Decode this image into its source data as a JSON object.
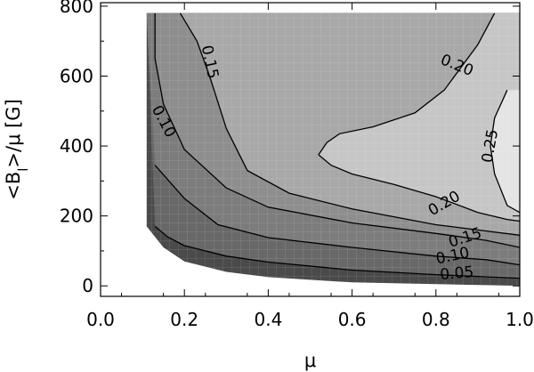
{
  "chart_data": {
    "type": "contour",
    "xlabel": "μ",
    "ylabel": "<Bₗ>/μ  [G]",
    "ylabel_parts": {
      "pre": "<B",
      "sub": "l",
      "post": ">/μ  [G]"
    },
    "xlim": [
      0.0,
      1.0
    ],
    "ylim": [
      -30,
      810
    ],
    "xticks": [
      "0.0",
      "0.2",
      "0.4",
      "0.6",
      "0.8",
      "1.0"
    ],
    "xtick_values": [
      0.0,
      0.2,
      0.4,
      0.6,
      0.8,
      1.0
    ],
    "yticks": [
      "0",
      "200",
      "400",
      "600",
      "800"
    ],
    "ytick_values": [
      0,
      200,
      400,
      600,
      800
    ],
    "data_domain": {
      "mu_range": [
        0.11,
        1.0
      ],
      "b_top": 780,
      "lower_boundary": [
        [
          0.11,
          170
        ],
        [
          0.15,
          110
        ],
        [
          0.2,
          70
        ],
        [
          0.3,
          40
        ],
        [
          0.4,
          25
        ],
        [
          0.6,
          10
        ],
        [
          0.8,
          5
        ],
        [
          1.0,
          0
        ]
      ]
    },
    "contour_levels": [
      0.05,
      0.1,
      0.15,
      0.2,
      0.25
    ],
    "contours": [
      {
        "level": 0.05,
        "label": "0.05",
        "label_at": [
          0.85,
          35
        ],
        "points": [
          [
            0.13,
            170
          ],
          [
            0.16,
            140
          ],
          [
            0.2,
            115
          ],
          [
            0.3,
            85
          ],
          [
            0.4,
            68
          ],
          [
            0.6,
            45
          ],
          [
            0.8,
            32
          ],
          [
            1.0,
            22
          ]
        ]
      },
      {
        "level": 0.1,
        "label": "0.10",
        "label_at": [
          0.84,
          85
        ],
        "points": [
          [
            0.13,
            345
          ],
          [
            0.2,
            250
          ],
          [
            0.28,
            175
          ],
          [
            0.4,
            138
          ],
          [
            0.6,
            110
          ],
          [
            0.8,
            85
          ],
          [
            0.92,
            75
          ],
          [
            1.0,
            60
          ]
        ]
      },
      {
        "level": 0.1,
        "label": "0.10",
        "label_at": [
          0.15,
          470
        ],
        "points": [
          [
            0.13,
            780
          ],
          [
            0.13,
            650
          ],
          [
            0.15,
            520
          ],
          [
            0.2,
            390
          ],
          [
            0.3,
            280
          ],
          [
            0.4,
            225
          ],
          [
            0.6,
            180
          ],
          [
            0.8,
            150
          ],
          [
            0.92,
            130
          ],
          [
            1.0,
            110
          ]
        ]
      },
      {
        "level": 0.15,
        "label": "0.15",
        "label_at": [
          0.87,
          137
        ],
        "points": [
          [
            0.19,
            780
          ],
          [
            0.23,
            700
          ],
          [
            0.26,
            600
          ],
          [
            0.3,
            450
          ],
          [
            0.35,
            330
          ],
          [
            0.45,
            265
          ],
          [
            0.6,
            220
          ],
          [
            0.8,
            175
          ],
          [
            1.0,
            145
          ]
        ]
      },
      {
        "level": 0.15,
        "label": "0.15",
        "label_at": [
          0.26,
          640
        ],
        "points": [
          [
            0.29,
            780
          ],
          [
            0.29,
            780
          ]
        ]
      },
      {
        "level": 0.2,
        "label": "0.20",
        "label_at": [
          0.82,
          235
        ],
        "points": [
          [
            0.52,
            375
          ],
          [
            0.54,
            410
          ],
          [
            0.57,
            435
          ],
          [
            0.65,
            455
          ],
          [
            0.75,
            495
          ],
          [
            0.82,
            560
          ],
          [
            0.9,
            690
          ],
          [
            0.94,
            780
          ]
        ]
      },
      {
        "level": 0.2,
        "label": "0.20",
        "label_at": [
          0.85,
          630
        ],
        "points": [
          [
            0.52,
            375
          ],
          [
            0.55,
            345
          ],
          [
            0.6,
            320
          ],
          [
            0.7,
            290
          ],
          [
            0.8,
            255
          ],
          [
            0.9,
            210
          ],
          [
            0.97,
            190
          ],
          [
            1.0,
            185
          ]
        ]
      },
      {
        "level": 0.25,
        "label": "0.25",
        "label_at": [
          0.93,
          400
        ],
        "points": [
          [
            0.97,
            560
          ],
          [
            0.94,
            480
          ],
          [
            0.93,
            400
          ],
          [
            0.94,
            320
          ],
          [
            0.97,
            230
          ],
          [
            1.0,
            210
          ]
        ]
      }
    ]
  }
}
